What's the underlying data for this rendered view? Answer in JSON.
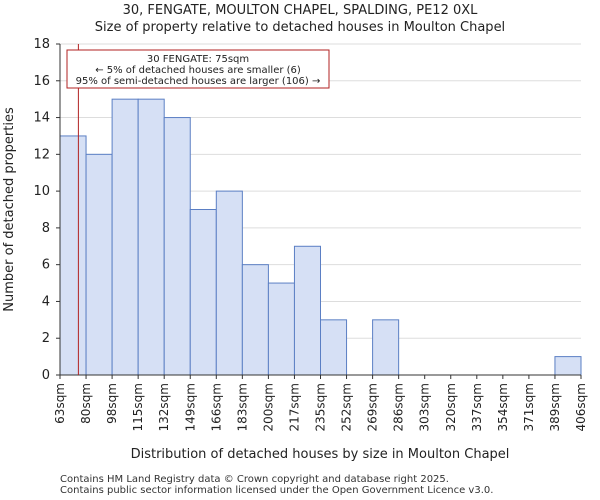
{
  "title_line1": "30, FENGATE, MOULTON CHAPEL, SPALDING, PE12 0XL",
  "title_line2": "Size of property relative to detached houses in Moulton Chapel",
  "footer_line1": "Contains HM Land Registry data © Crown copyright and database right 2025.",
  "footer_line2": "Contains public sector information licensed under the Open Government Licence v3.0.",
  "colors": {
    "bar_fill": "#d6e0f5",
    "bar_stroke": "#5b7fc4",
    "marker": "#b22222",
    "grid": "#dddddd"
  },
  "chart_data": {
    "type": "bar",
    "xlabel": "Distribution of detached houses by size in Moulton Chapel",
    "ylabel": "Number of detached properties",
    "ylim": [
      0,
      18
    ],
    "yticks": [
      0,
      2,
      4,
      6,
      8,
      10,
      12,
      14,
      16,
      18
    ],
    "grid": true,
    "bin_edges": [
      "63sqm",
      "80sqm",
      "98sqm",
      "115sqm",
      "132sqm",
      "149sqm",
      "166sqm",
      "183sqm",
      "200sqm",
      "217sqm",
      "235sqm",
      "252sqm",
      "269sqm",
      "286sqm",
      "303sqm",
      "320sqm",
      "337sqm",
      "354sqm",
      "371sqm",
      "389sqm",
      "406sqm"
    ],
    "values": [
      13,
      12,
      15,
      15,
      14,
      9,
      10,
      6,
      5,
      7,
      3,
      0,
      3,
      0,
      0,
      0,
      0,
      0,
      0,
      1
    ],
    "marker_value_sqm": 75,
    "annotation": {
      "line1": "30 FENGATE: 75sqm",
      "line2": "← 5% of detached houses are smaller (6)",
      "line3": "95% of semi-detached houses are larger (106) →"
    }
  }
}
